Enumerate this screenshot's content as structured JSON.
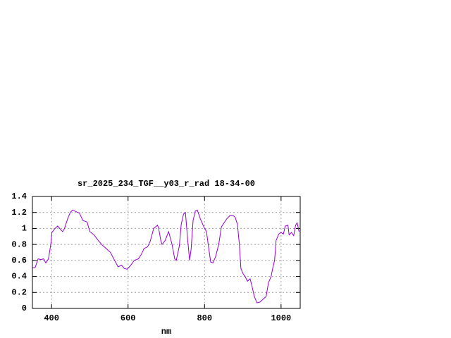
{
  "chart_data": {
    "type": "line",
    "title": "sr_2025_234_TGF__y03_r_rad 18-34-00",
    "x_label": "nm",
    "x": [
      350,
      357,
      365,
      372,
      379,
      385,
      392,
      398,
      401,
      409,
      416,
      423,
      429,
      434,
      442,
      449,
      455,
      464,
      473,
      482,
      493,
      500,
      511,
      522,
      533,
      545,
      554,
      565,
      574,
      583,
      590,
      598,
      607,
      616,
      627,
      634,
      642,
      651,
      658,
      667,
      677,
      680,
      686,
      689,
      697,
      706,
      715,
      722,
      726,
      734,
      739,
      745,
      750,
      756,
      761,
      765,
      770,
      776,
      781,
      789,
      798,
      805,
      811,
      816,
      822,
      829,
      837,
      844,
      851,
      858,
      866,
      875,
      880,
      886,
      891,
      895,
      901,
      906,
      912,
      919,
      924,
      930,
      937,
      945,
      954,
      961,
      967,
      974,
      978,
      983,
      987,
      994,
      1000,
      1006,
      1011,
      1018,
      1021,
      1027,
      1033,
      1038,
      1042,
      1047
    ],
    "series": [
      {
        "color": "#9400d3",
        "values": [
          0.51,
          0.51,
          0.62,
          0.61,
          0.62,
          0.57,
          0.62,
          0.8,
          0.95,
          1.0,
          1.03,
          0.99,
          0.96,
          1.0,
          1.12,
          1.2,
          1.23,
          1.21,
          1.19,
          1.1,
          1.08,
          0.96,
          0.92,
          0.85,
          0.79,
          0.74,
          0.7,
          0.6,
          0.52,
          0.54,
          0.5,
          0.49,
          0.54,
          0.6,
          0.62,
          0.67,
          0.75,
          0.77,
          0.84,
          1.0,
          1.04,
          1.0,
          0.84,
          0.8,
          0.85,
          0.96,
          0.8,
          0.62,
          0.6,
          0.78,
          1.05,
          1.18,
          1.2,
          0.85,
          0.6,
          0.75,
          1.1,
          1.22,
          1.23,
          1.12,
          1.02,
          0.96,
          0.75,
          0.58,
          0.57,
          0.65,
          0.8,
          1.02,
          1.07,
          1.12,
          1.16,
          1.16,
          1.14,
          1.05,
          0.8,
          0.5,
          0.43,
          0.4,
          0.34,
          0.37,
          0.28,
          0.15,
          0.07,
          0.08,
          0.12,
          0.15,
          0.32,
          0.4,
          0.5,
          0.6,
          0.85,
          0.93,
          0.95,
          0.93,
          1.03,
          1.04,
          0.92,
          0.95,
          0.91,
          1.04,
          1.07,
          0.96
        ]
      }
    ],
    "xlim": [
      350,
      1050
    ],
    "xticks": [
      400,
      600,
      800,
      1000
    ],
    "ylim": [
      0,
      1.4
    ],
    "yticks": [
      0,
      0.2,
      0.4,
      0.6,
      0.8,
      1,
      1.2,
      1.4
    ],
    "grid": true
  }
}
